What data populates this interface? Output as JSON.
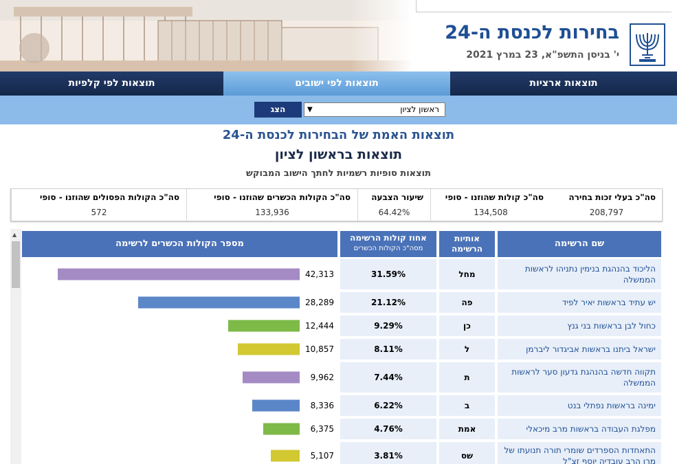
{
  "header": {
    "title": "בחירות לכנסת ה-24",
    "date": "י' בניסן התשפ\"א, 23 במרץ 2021"
  },
  "tabs": [
    {
      "label": "תוצאות ארציות"
    },
    {
      "label": "תוצאות לפי ישובים"
    },
    {
      "label": "תוצאות לפי קלפיות"
    }
  ],
  "selector": {
    "city": "ראשון לציון",
    "show_label": "הצג"
  },
  "titles": {
    "main": "תוצאות האמת של הבחירות לכנסת ה-24",
    "city": "תוצאות בראשון לציון",
    "subtitle": "תוצאות סופיות רשמיות לחתך הישוב המבוקש"
  },
  "stats": {
    "eligible": {
      "label": "סה\"כ בעלי זכות בחירה",
      "value": "208,797"
    },
    "counted": {
      "label": "סה\"כ קולות שהוזנו - סופי",
      "value": "134,508"
    },
    "turnout": {
      "label": "שיעור הצבעה",
      "value": "64.42%"
    },
    "valid": {
      "label": "סה\"כ הקולות הכשרים שהוזנו - סופי",
      "value": "133,936"
    },
    "invalid": {
      "label": "סה\"כ הקולות הפסולים שהוזנו - סופי",
      "value": "572"
    }
  },
  "table": {
    "headers": {
      "name": "שם הרשימה",
      "letters": "אותיות הרשימה",
      "percent": "אחוז קולות הרשימה",
      "percent_sub": "מסה\"כ הקולות הכשרים",
      "votes": "מספר הקולות הכשרים לרשימה"
    },
    "rows": [
      {
        "name": "הליכוד בהנהגת בנימין נתניהו לראשות הממשלה",
        "letters": "מחל",
        "percent": "31.59%",
        "votes": "42,313",
        "votes_value": 42313,
        "color": "#a48bc4"
      },
      {
        "name": "יש עתיד בראשות יאיר לפיד",
        "letters": "פה",
        "percent": "21.12%",
        "votes": "28,289",
        "votes_value": 28289,
        "color": "#5b86c8"
      },
      {
        "name": "כחול לבן בראשות בני גנץ",
        "letters": "כן",
        "percent": "9.29%",
        "votes": "12,444",
        "votes_value": 12444,
        "color": "#7dba48"
      },
      {
        "name": "ישראל ביתנו בראשות אביגדור ליברמן",
        "letters": "ל",
        "percent": "8.11%",
        "votes": "10,857",
        "votes_value": 10857,
        "color": "#d2c832"
      },
      {
        "name": "תקווה חדשה בהנהגת גדעון סער לראשות הממשלה",
        "letters": "ת",
        "percent": "7.44%",
        "votes": "9,962",
        "votes_value": 9962,
        "color": "#a48bc4"
      },
      {
        "name": "ימינה בראשות נפתלי בנט",
        "letters": "ב",
        "percent": "6.22%",
        "votes": "8,336",
        "votes_value": 8336,
        "color": "#5b86c8"
      },
      {
        "name": "מפלגת העבודה בראשות מרב מיכאלי",
        "letters": "אמת",
        "percent": "4.76%",
        "votes": "6,375",
        "votes_value": 6375,
        "color": "#7dba48"
      },
      {
        "name": "התאחדות הספרדים שומרי תורה תנועתו של מרן הרב עובדיה יוסף זצ\"ל",
        "letters": "שס",
        "percent": "3.81%",
        "votes": "5,107",
        "votes_value": 5107,
        "color": "#d2c832"
      }
    ]
  }
}
